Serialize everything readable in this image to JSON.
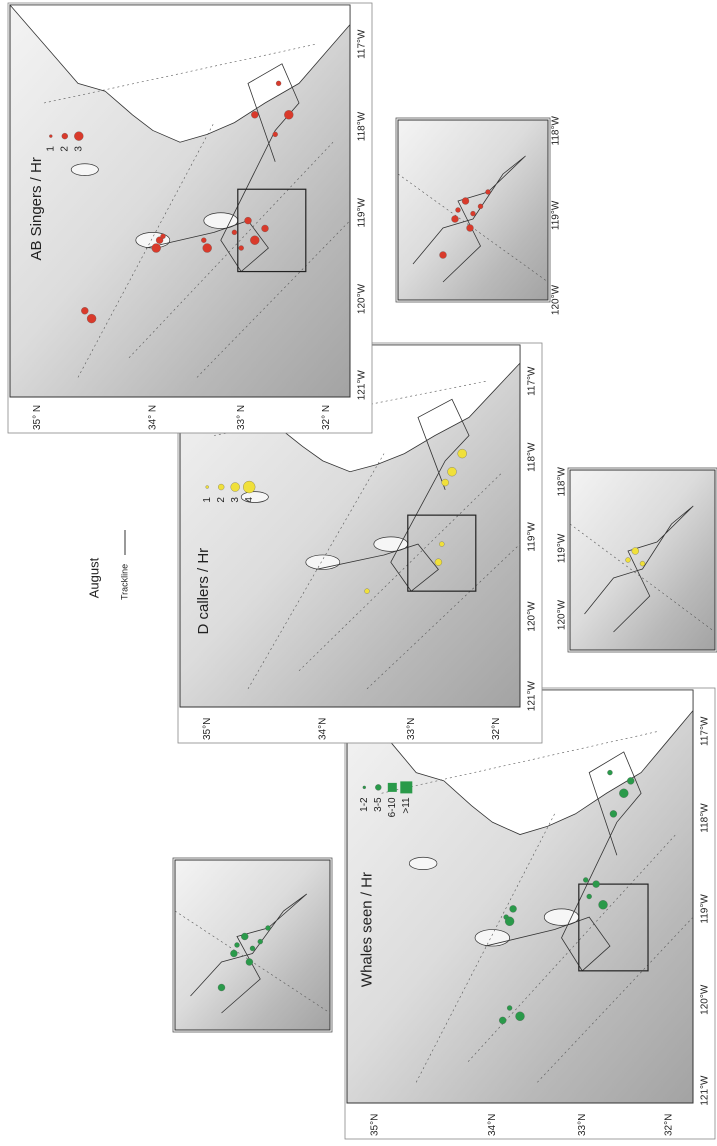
{
  "header": {
    "title": "August",
    "trackline": "Trackline"
  },
  "panels": [
    {
      "title": "AB Singers / Hr",
      "color": "#d93a2b",
      "legend": [
        "1",
        "2",
        "3"
      ],
      "lat_labels": [
        "35° N",
        "34° N",
        "33° N",
        "32° N"
      ],
      "lon_labels": [
        "121°W",
        "120°W",
        "119°W",
        "118°W",
        "117°W"
      ],
      "inset_lon_labels": [
        "120°W",
        "119°W",
        "118°W"
      ]
    },
    {
      "title": "D callers / Hr",
      "color": "#f0e03a",
      "legend": [
        "1",
        "2",
        "3",
        "4"
      ],
      "lat_labels": [
        "35°N",
        "34°N",
        "33°N",
        "32°N"
      ],
      "lon_labels": [
        "121°W",
        "120°W",
        "119°W",
        "118°W",
        "117°W"
      ],
      "inset_lon_labels": [
        "120°W",
        "119°W",
        "118°W"
      ]
    },
    {
      "title": "Whales seen / Hr",
      "color": "#2a9a4a",
      "legend": [
        "1-2",
        "3-5",
        "6-10",
        ">11"
      ],
      "lat_labels": [
        "35°N",
        "34°N",
        "33°N",
        "32°N"
      ],
      "lon_labels": [
        "121°W",
        "120°W",
        "119°W",
        "118°W",
        "117°W"
      ]
    }
  ]
}
